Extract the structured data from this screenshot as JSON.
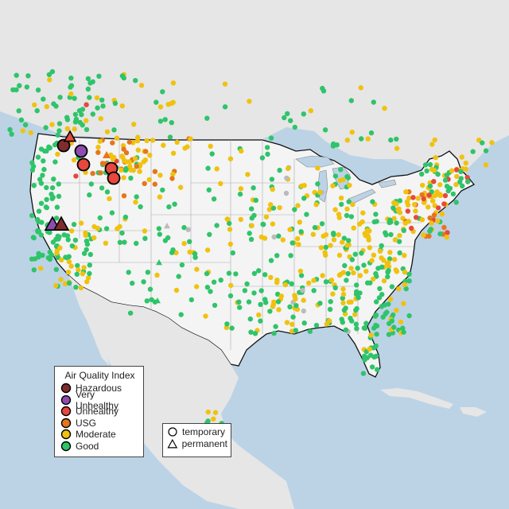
{
  "legend": {
    "title": "Air Quality Index",
    "categories": [
      {
        "label": "Hazardous",
        "color": "#7e2d2d"
      },
      {
        "label": "Very Unhealthy",
        "color": "#8e4cae"
      },
      {
        "label": "Unhealthy",
        "color": "#e8473d"
      },
      {
        "label": "USG",
        "color": "#e6761c"
      },
      {
        "label": "Moderate",
        "color": "#f0c20f"
      },
      {
        "label": "Good",
        "color": "#2fc46a"
      }
    ],
    "monitor_types": [
      {
        "label": "temporary",
        "shape": "circle"
      },
      {
        "label": "permanent",
        "shape": "triangle"
      }
    ]
  },
  "colors": {
    "ocean": "#bcd3e6",
    "land": "#e6e6e6",
    "us_land": "#f4f4f4",
    "border": "#111111",
    "state_line": "#aaaaaa",
    "no_data": "#bbbbbb"
  }
}
